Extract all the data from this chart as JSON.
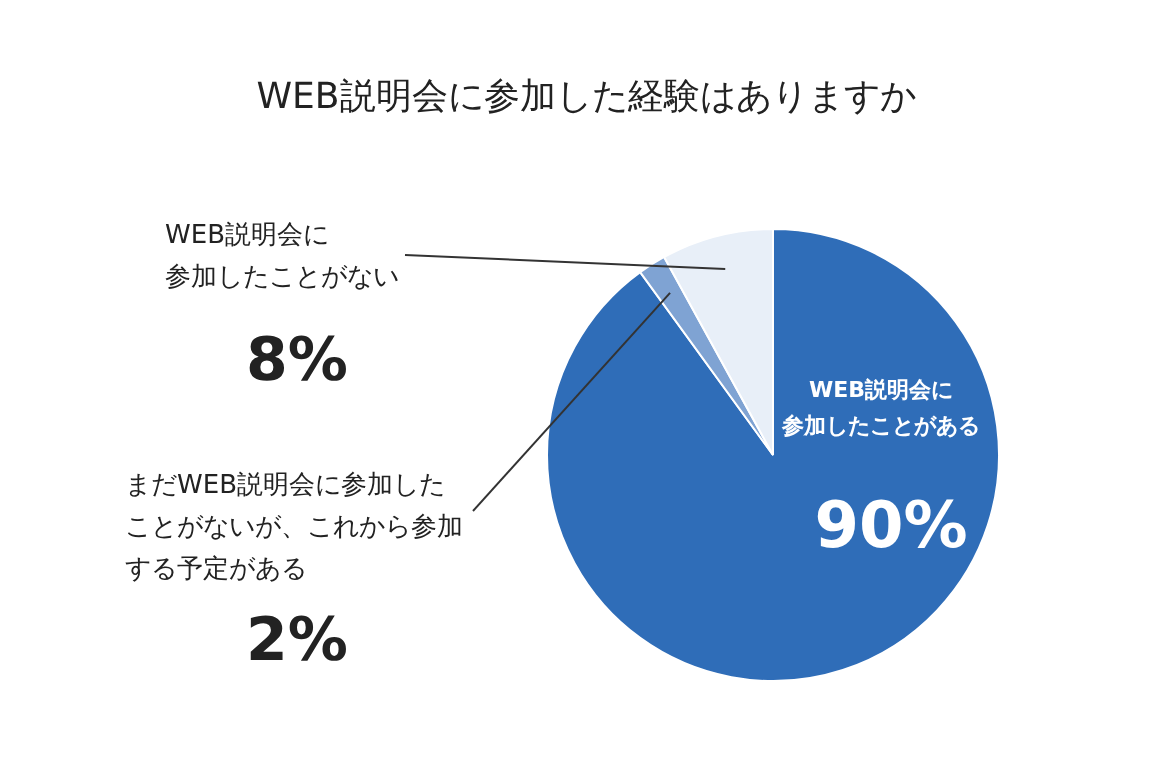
{
  "chart_data": {
    "type": "pie",
    "title": "WEB説明会に参加した経験はありますか",
    "categories": [
      "WEB説明会に参加したことがある",
      "まだWEB説明会に参加したことがないが、これから参加する予定がある",
      "WEB説明会に参加したことがない"
    ],
    "values": [
      90,
      2,
      8
    ],
    "colors": [
      "#2f6db8",
      "#7fa3d3",
      "#e8eff8"
    ],
    "value_labels": [
      "90%",
      "2%",
      "8%"
    ]
  }
}
